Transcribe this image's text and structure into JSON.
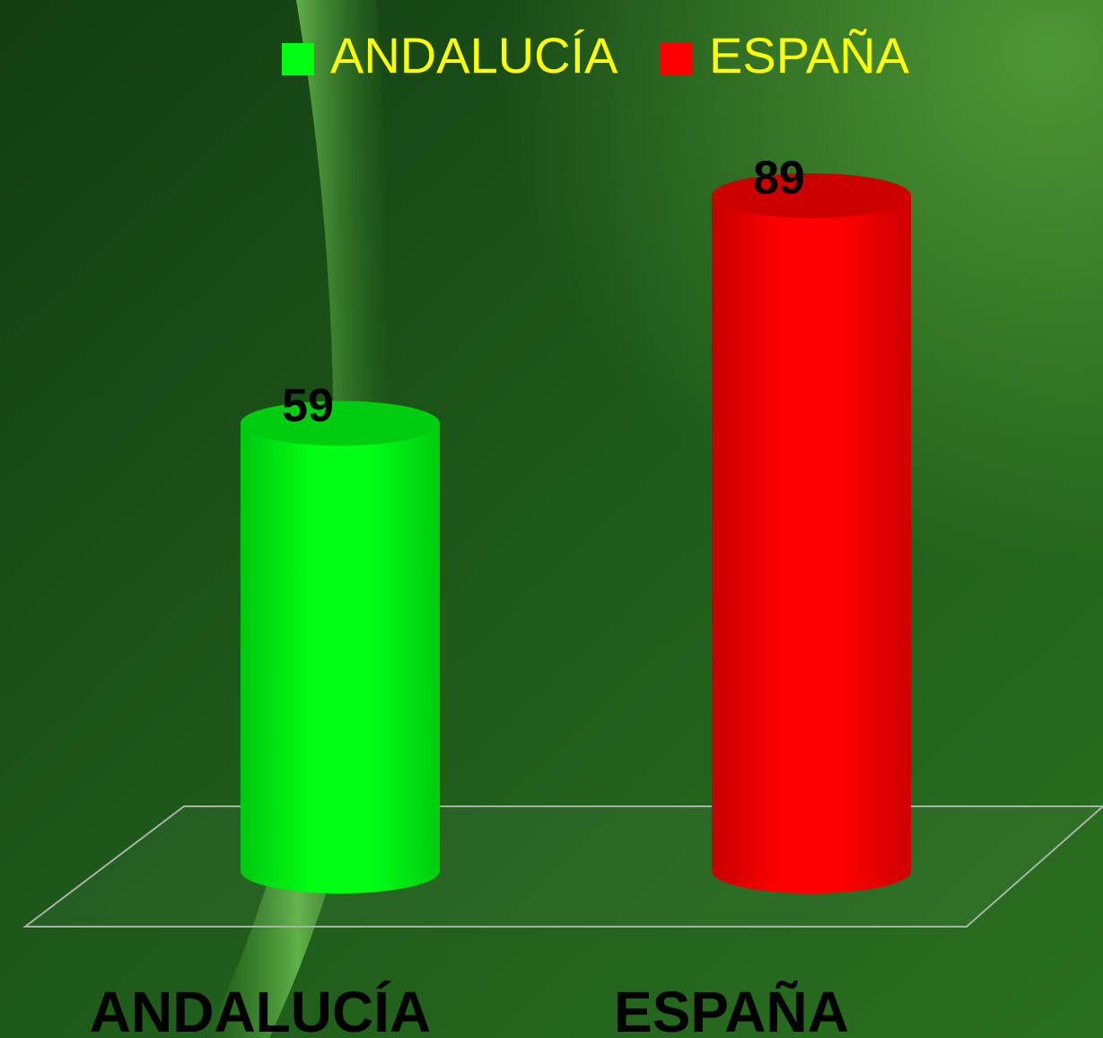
{
  "chart_data": {
    "type": "bar3d",
    "categories": [
      "ANDALUCÍA",
      "ESPAÑA"
    ],
    "series": [
      {
        "name": "ANDALUCÍA",
        "color": "#00ff14",
        "values": [
          59,
          null
        ]
      },
      {
        "name": "ESPAÑA",
        "color": "#ff0000",
        "values": [
          null,
          89
        ]
      }
    ]
  }
}
